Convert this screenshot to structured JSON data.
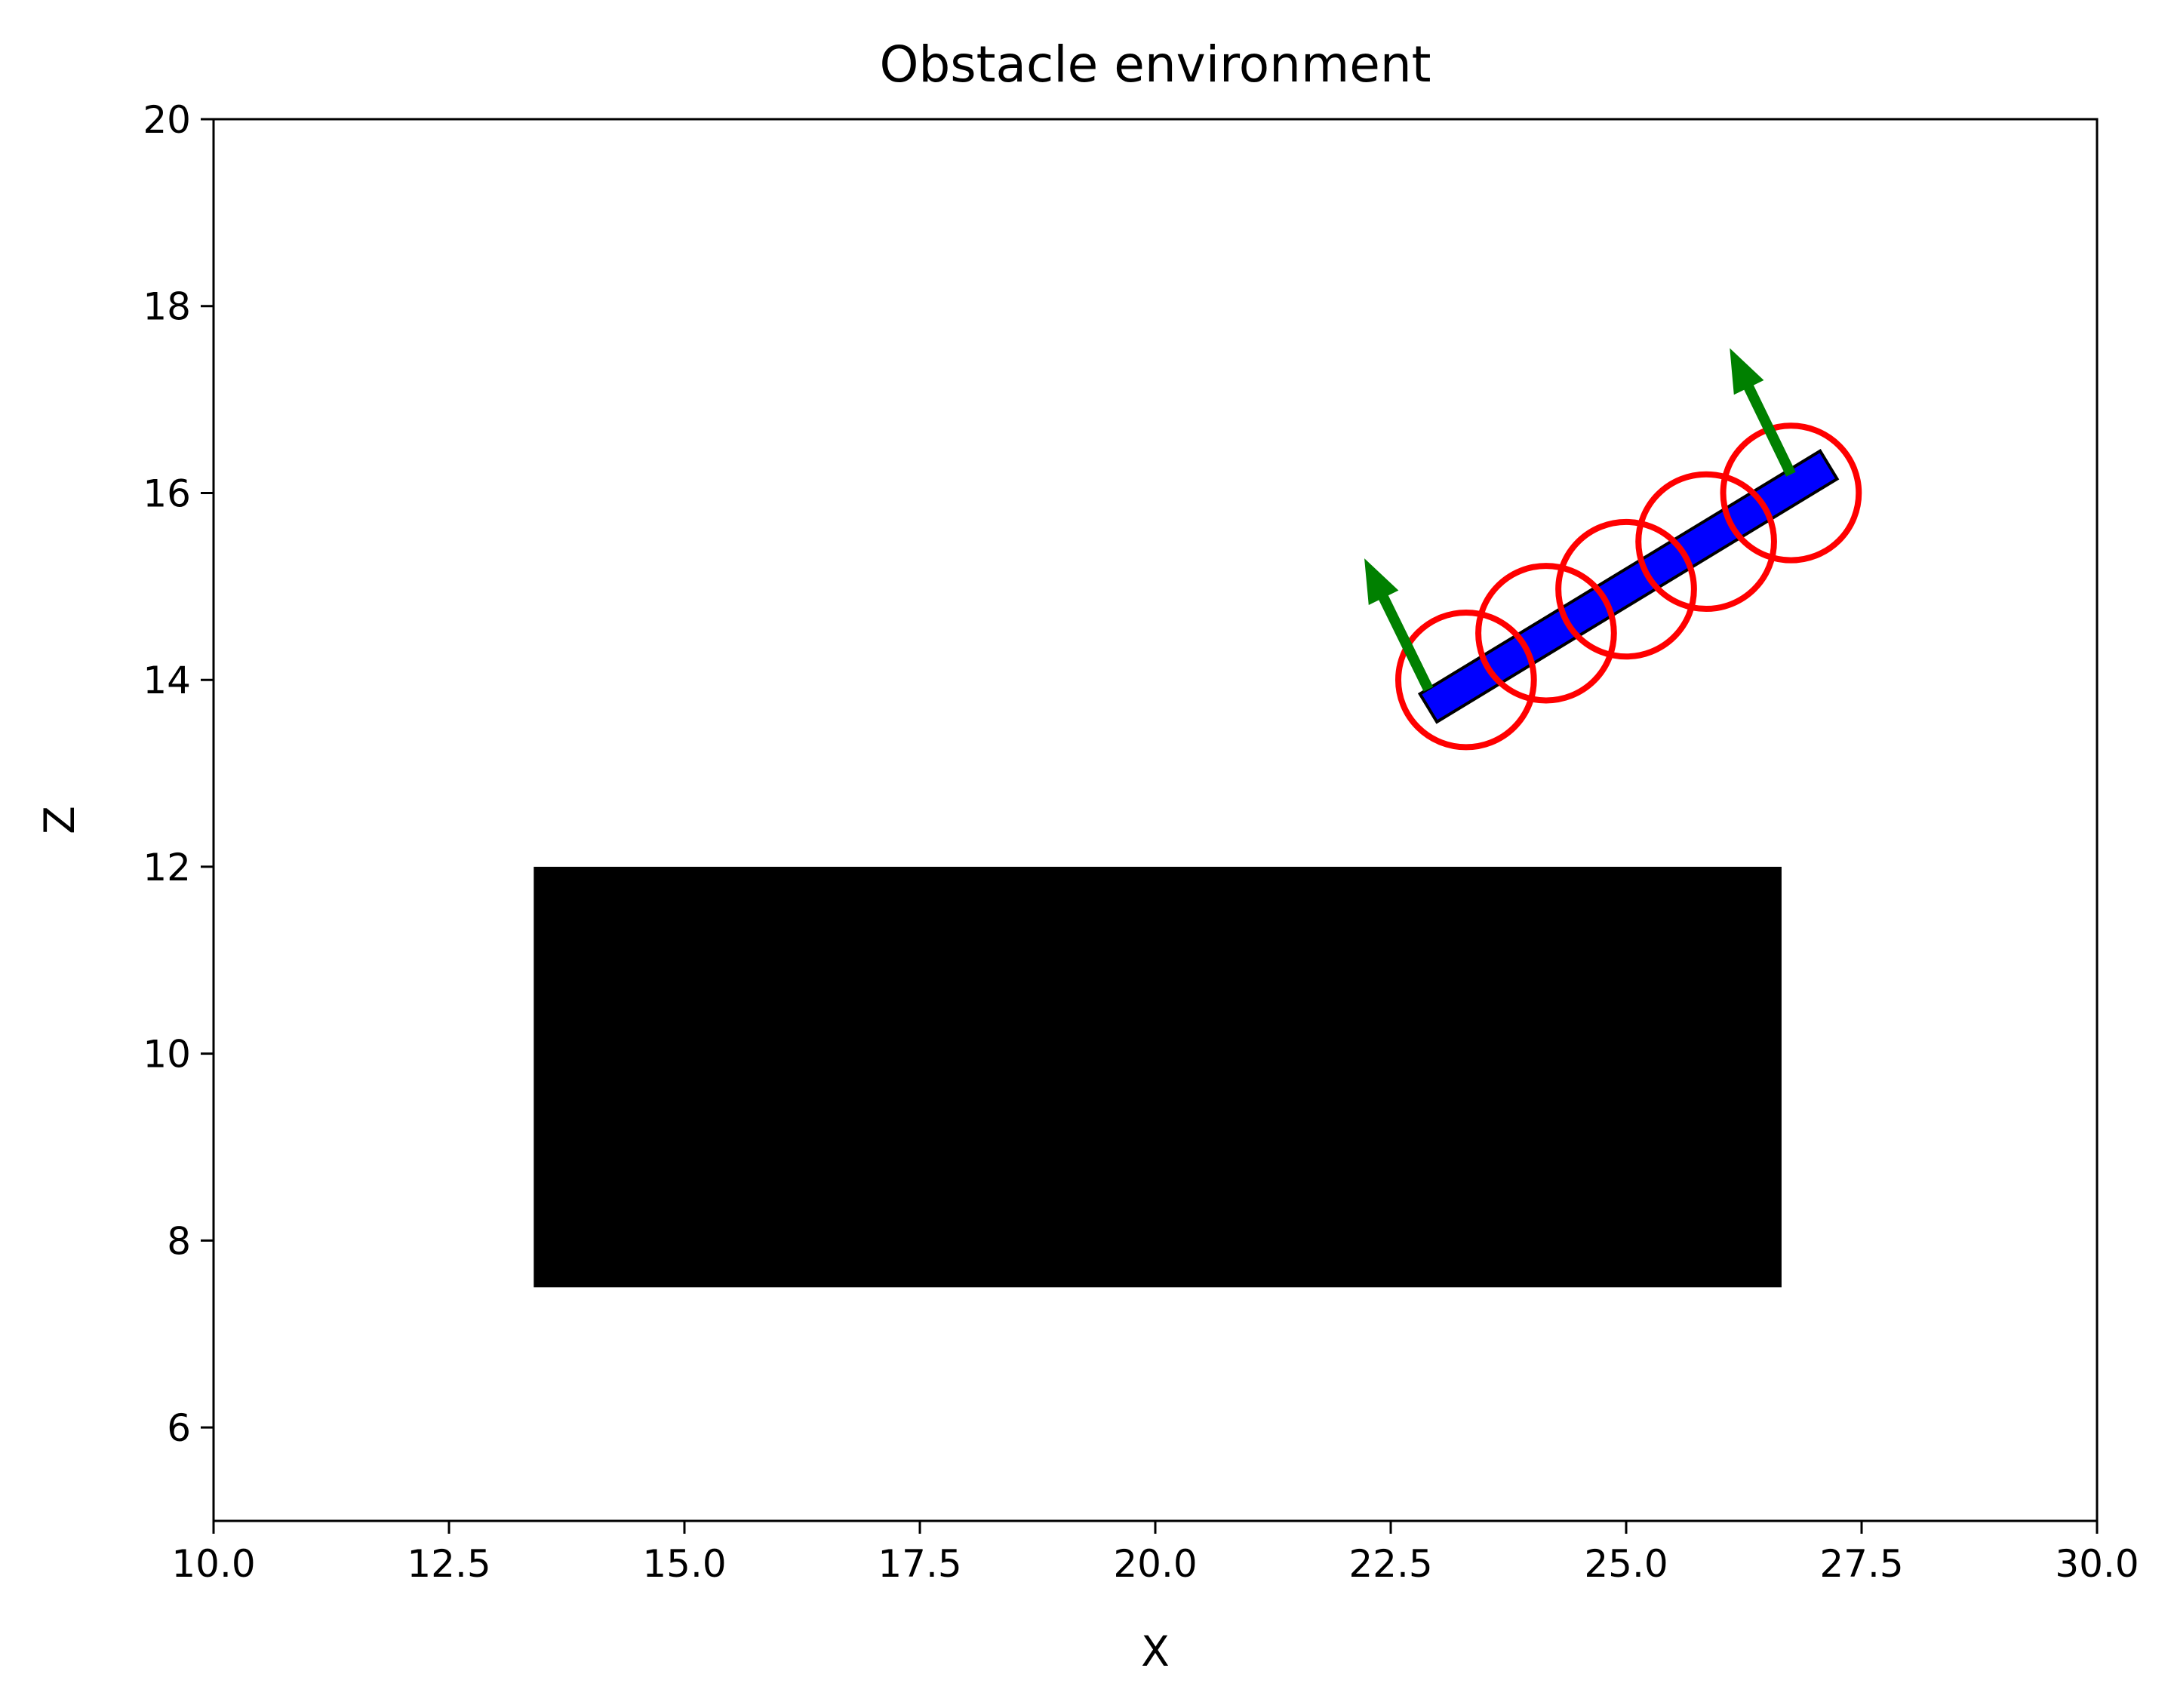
{
  "chart_data": {
    "type": "scatter",
    "title": "Obstacle environment",
    "xlabel": "X",
    "ylabel": "Z",
    "xlim": [
      10.0,
      30.0
    ],
    "ylim": [
      5.0,
      20.0
    ],
    "x_ticks": [
      10.0,
      12.5,
      15.0,
      17.5,
      20.0,
      22.5,
      25.0,
      27.5,
      30.0
    ],
    "x_tick_labels": [
      "10.0",
      "12.5",
      "15.0",
      "17.5",
      "20.0",
      "22.5",
      "25.0",
      "27.5",
      "30.0"
    ],
    "y_ticks": [
      6,
      8,
      10,
      12,
      14,
      16,
      18,
      20
    ],
    "y_tick_labels": [
      "6",
      "8",
      "10",
      "12",
      "14",
      "16",
      "18",
      "20"
    ],
    "grid": false,
    "obstacle": {
      "x_min": 13.4,
      "x_max": 26.65,
      "z_min": 7.5,
      "z_max": 12.0,
      "color": "#000000"
    },
    "bar": {
      "start": [
        22.9,
        13.7
      ],
      "end": [
        27.15,
        16.3
      ],
      "thickness_data": 0.35,
      "color": "#0000ff",
      "edge_color": "#000000"
    },
    "circles": {
      "centers": [
        [
          23.3,
          14.0
        ],
        [
          24.15,
          14.5
        ],
        [
          25.0,
          14.97
        ],
        [
          25.85,
          15.48
        ],
        [
          26.75,
          16.0
        ]
      ],
      "radius": 0.72,
      "color": "#ff0000"
    },
    "arrows": {
      "color": "#008000",
      "items": [
        {
          "start": [
            22.9,
            13.9
          ],
          "end": [
            22.22,
            15.3
          ]
        },
        {
          "start": [
            26.75,
            16.2
          ],
          "end": [
            26.1,
            17.55
          ]
        }
      ]
    }
  }
}
